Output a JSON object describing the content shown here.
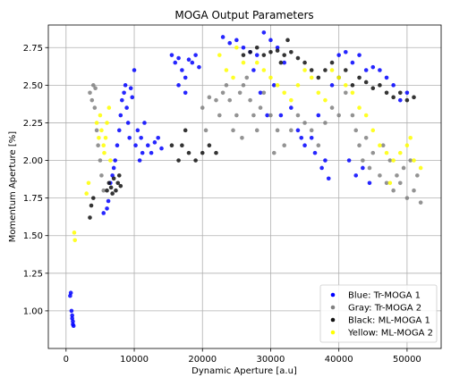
{
  "chart_data": {
    "type": "scatter",
    "title": "MOGA Output Parameters",
    "xlabel": "Dynamic Aperture [a.u]",
    "ylabel": "Momentum Aperture [%]",
    "xlim": [
      -2600,
      55000
    ],
    "ylim": [
      0.75,
      2.9
    ],
    "xticks": [
      0,
      10000,
      20000,
      30000,
      40000,
      50000
    ],
    "xtick_labels": [
      "0",
      "10000",
      "20000",
      "30000",
      "40000",
      "50000"
    ],
    "yticks": [
      1.0,
      1.25,
      1.5,
      1.75,
      2.0,
      2.25,
      2.5,
      2.75
    ],
    "ytick_labels": [
      "1.00",
      "1.25",
      "1.50",
      "1.75",
      "2.00",
      "2.25",
      "2.50",
      "2.75"
    ],
    "grid": true,
    "legend_position": "lower-right",
    "series": [
      {
        "name": "Blue: Tr-MOGA 1",
        "color": "#0000ff",
        "points": [
          [
            600,
            1.1
          ],
          [
            700,
            1.12
          ],
          [
            800,
            1.0
          ],
          [
            900,
            0.97
          ],
          [
            1000,
            0.93
          ],
          [
            1100,
            0.9
          ],
          [
            900,
            0.95
          ],
          [
            1000,
            0.91
          ],
          [
            5500,
            1.65
          ],
          [
            6000,
            1.68
          ],
          [
            6200,
            1.73
          ],
          [
            6500,
            1.85
          ],
          [
            6800,
            1.9
          ],
          [
            7000,
            1.95
          ],
          [
            7200,
            2.0
          ],
          [
            7500,
            2.1
          ],
          [
            7800,
            2.2
          ],
          [
            8000,
            2.3
          ],
          [
            8200,
            2.4
          ],
          [
            8500,
            2.45
          ],
          [
            8700,
            2.5
          ],
          [
            8900,
            2.35
          ],
          [
            9100,
            2.25
          ],
          [
            9300,
            2.15
          ],
          [
            9500,
            2.48
          ],
          [
            9700,
            2.42
          ],
          [
            10000,
            2.6
          ],
          [
            10200,
            2.1
          ],
          [
            10500,
            2.2
          ],
          [
            11000,
            2.15
          ],
          [
            11500,
            2.25
          ],
          [
            12000,
            2.1
          ],
          [
            12500,
            2.05
          ],
          [
            13000,
            2.12
          ],
          [
            13500,
            2.15
          ],
          [
            14000,
            2.08
          ],
          [
            10800,
            2.0
          ],
          [
            11200,
            2.05
          ],
          [
            15500,
            2.7
          ],
          [
            16000,
            2.65
          ],
          [
            16500,
            2.68
          ],
          [
            17000,
            2.6
          ],
          [
            17500,
            2.55
          ],
          [
            18000,
            2.67
          ],
          [
            18500,
            2.65
          ],
          [
            19000,
            2.7
          ],
          [
            19500,
            2.62
          ],
          [
            17500,
            2.45
          ],
          [
            16500,
            2.5
          ],
          [
            23000,
            2.82
          ],
          [
            24000,
            2.78
          ],
          [
            25000,
            2.8
          ],
          [
            26000,
            2.75
          ],
          [
            27000,
            2.72
          ],
          [
            28000,
            2.7
          ],
          [
            29000,
            2.85
          ],
          [
            30000,
            2.8
          ],
          [
            31000,
            2.75
          ],
          [
            32000,
            2.65
          ],
          [
            30500,
            2.5
          ],
          [
            31500,
            2.3
          ],
          [
            33000,
            2.35
          ],
          [
            34000,
            2.2
          ],
          [
            35000,
            2.1
          ],
          [
            36000,
            2.15
          ],
          [
            37000,
            2.3
          ],
          [
            38000,
            2.0
          ],
          [
            38500,
            1.88
          ],
          [
            39000,
            2.5
          ],
          [
            40000,
            2.7
          ],
          [
            41000,
            2.72
          ],
          [
            42000,
            2.65
          ],
          [
            43000,
            2.7
          ],
          [
            44000,
            2.6
          ],
          [
            45000,
            2.62
          ],
          [
            46000,
            2.6
          ],
          [
            47000,
            2.55
          ],
          [
            48000,
            2.5
          ],
          [
            49000,
            2.4
          ],
          [
            50000,
            2.45
          ],
          [
            41500,
            2.0
          ],
          [
            42500,
            1.9
          ],
          [
            43500,
            1.95
          ],
          [
            44500,
            1.85
          ],
          [
            36500,
            2.05
          ],
          [
            37500,
            1.95
          ],
          [
            34500,
            2.15
          ],
          [
            29500,
            2.3
          ],
          [
            28500,
            2.45
          ],
          [
            27500,
            2.6
          ]
        ]
      },
      {
        "name": "Gray: Tr-MOGA 2",
        "color": "#808080",
        "points": [
          [
            3500,
            2.45
          ],
          [
            4000,
            2.5
          ],
          [
            4200,
            2.35
          ],
          [
            4500,
            2.2
          ],
          [
            4700,
            2.1
          ],
          [
            5000,
            2.0
          ],
          [
            5200,
            1.9
          ],
          [
            5500,
            1.8
          ],
          [
            3800,
            2.4
          ],
          [
            4300,
            2.48
          ],
          [
            20000,
            2.35
          ],
          [
            21000,
            2.42
          ],
          [
            22000,
            2.4
          ],
          [
            22500,
            2.3
          ],
          [
            23000,
            2.45
          ],
          [
            23500,
            2.5
          ],
          [
            24000,
            2.4
          ],
          [
            24500,
            2.2
          ],
          [
            25000,
            2.3
          ],
          [
            25500,
            2.45
          ],
          [
            26000,
            2.5
          ],
          [
            26500,
            2.55
          ],
          [
            27000,
            2.4
          ],
          [
            27500,
            2.3
          ],
          [
            28000,
            2.2
          ],
          [
            28500,
            2.35
          ],
          [
            29000,
            2.45
          ],
          [
            30000,
            2.3
          ],
          [
            31000,
            2.2
          ],
          [
            32000,
            2.1
          ],
          [
            33000,
            2.2
          ],
          [
            34000,
            2.3
          ],
          [
            35000,
            2.25
          ],
          [
            36000,
            2.2
          ],
          [
            37000,
            2.1
          ],
          [
            38000,
            2.25
          ],
          [
            39000,
            2.35
          ],
          [
            40000,
            2.3
          ],
          [
            41000,
            2.45
          ],
          [
            42000,
            2.3
          ],
          [
            42500,
            2.2
          ],
          [
            43000,
            2.1
          ],
          [
            43500,
            2.0
          ],
          [
            44000,
            2.15
          ],
          [
            44500,
            1.95
          ],
          [
            45000,
            2.05
          ],
          [
            46000,
            1.9
          ],
          [
            47000,
            1.85
          ],
          [
            48000,
            1.8
          ],
          [
            49000,
            1.85
          ],
          [
            50000,
            1.75
          ],
          [
            51000,
            1.8
          ],
          [
            52000,
            1.72
          ],
          [
            51500,
            1.9
          ],
          [
            50500,
            2.0
          ],
          [
            49500,
            1.95
          ],
          [
            48500,
            1.9
          ],
          [
            47500,
            2.0
          ],
          [
            46500,
            2.1
          ],
          [
            20500,
            2.2
          ],
          [
            25800,
            2.15
          ],
          [
            30500,
            2.05
          ]
        ]
      },
      {
        "name": "Black: ML-MOGA 1",
        "color": "#111111",
        "points": [
          [
            3500,
            1.62
          ],
          [
            3700,
            1.7
          ],
          [
            4000,
            1.75
          ],
          [
            6000,
            1.8
          ],
          [
            6300,
            1.85
          ],
          [
            6600,
            1.82
          ],
          [
            7000,
            1.88
          ],
          [
            7300,
            1.8
          ],
          [
            7600,
            1.85
          ],
          [
            8000,
            1.83
          ],
          [
            6800,
            1.78
          ],
          [
            7800,
            1.9
          ],
          [
            16500,
            2.0
          ],
          [
            17000,
            2.1
          ],
          [
            17500,
            2.2
          ],
          [
            18000,
            2.05
          ],
          [
            19000,
            2.0
          ],
          [
            20000,
            2.05
          ],
          [
            21000,
            2.1
          ],
          [
            22000,
            2.05
          ],
          [
            15500,
            2.1
          ],
          [
            26000,
            2.7
          ],
          [
            27000,
            2.72
          ],
          [
            28000,
            2.75
          ],
          [
            29000,
            2.7
          ],
          [
            30000,
            2.72
          ],
          [
            31000,
            2.73
          ],
          [
            32000,
            2.7
          ],
          [
            33000,
            2.72
          ],
          [
            34000,
            2.68
          ],
          [
            35000,
            2.65
          ],
          [
            36000,
            2.6
          ],
          [
            37000,
            2.55
          ],
          [
            38000,
            2.6
          ],
          [
            39000,
            2.65
          ],
          [
            40000,
            2.55
          ],
          [
            41000,
            2.6
          ],
          [
            42000,
            2.5
          ],
          [
            43000,
            2.55
          ],
          [
            44000,
            2.52
          ],
          [
            45000,
            2.48
          ],
          [
            46000,
            2.5
          ],
          [
            47000,
            2.45
          ],
          [
            48000,
            2.42
          ],
          [
            49000,
            2.45
          ],
          [
            50000,
            2.4
          ],
          [
            51000,
            2.42
          ],
          [
            32500,
            2.8
          ],
          [
            31500,
            2.65
          ]
        ]
      },
      {
        "name": "Yellow: ML-MOGA 2",
        "color": "#ffff00",
        "points": [
          [
            1200,
            1.52
          ],
          [
            1300,
            1.47
          ],
          [
            3000,
            1.78
          ],
          [
            3300,
            1.85
          ],
          [
            4500,
            2.25
          ],
          [
            5000,
            2.3
          ],
          [
            5200,
            2.2
          ],
          [
            5500,
            2.1
          ],
          [
            5800,
            2.15
          ],
          [
            6000,
            2.25
          ],
          [
            6300,
            2.35
          ],
          [
            4800,
            2.15
          ],
          [
            5600,
            2.05
          ],
          [
            6500,
            2.0
          ],
          [
            22500,
            2.7
          ],
          [
            23500,
            2.6
          ],
          [
            24500,
            2.55
          ],
          [
            25000,
            2.75
          ],
          [
            26000,
            2.65
          ],
          [
            28000,
            2.65
          ],
          [
            29000,
            2.6
          ],
          [
            30000,
            2.55
          ],
          [
            31000,
            2.5
          ],
          [
            32000,
            2.45
          ],
          [
            33000,
            2.4
          ],
          [
            34000,
            2.5
          ],
          [
            35000,
            2.6
          ],
          [
            36000,
            2.55
          ],
          [
            37000,
            2.45
          ],
          [
            38000,
            2.4
          ],
          [
            39000,
            2.6
          ],
          [
            40000,
            2.55
          ],
          [
            41000,
            2.5
          ],
          [
            42000,
            2.45
          ],
          [
            43000,
            2.35
          ],
          [
            44000,
            2.3
          ],
          [
            45000,
            2.2
          ],
          [
            46000,
            2.1
          ],
          [
            47000,
            2.05
          ],
          [
            48000,
            2.0
          ],
          [
            49000,
            2.05
          ],
          [
            50000,
            2.1
          ],
          [
            51000,
            2.0
          ],
          [
            52000,
            1.95
          ],
          [
            47500,
            1.85
          ],
          [
            50500,
            2.15
          ]
        ]
      }
    ]
  }
}
